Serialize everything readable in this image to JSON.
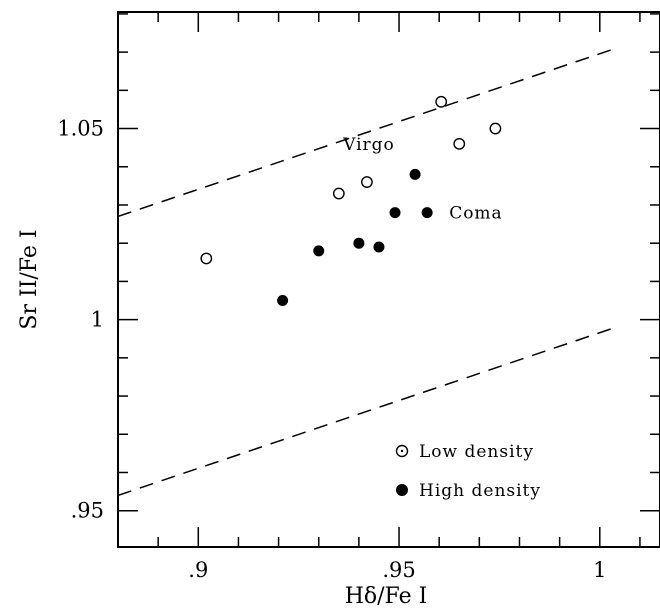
{
  "chart_data": {
    "type": "scatter",
    "xlabel": "Hδ/Fe I",
    "ylabel": "Sr II/Fe I",
    "xlim": [
      0.88,
      1.015
    ],
    "ylim": [
      0.9405,
      1.0805
    ],
    "x_ticks": [
      {
        "value": 0.9,
        "label": ".9"
      },
      {
        "value": 0.95,
        "label": ".95"
      },
      {
        "value": 1.0,
        "label": "1"
      }
    ],
    "y_ticks": [
      {
        "value": 0.95,
        "label": ".95"
      },
      {
        "value": 1.0,
        "label": "1"
      },
      {
        "value": 1.05,
        "label": "1.05"
      }
    ],
    "series": [
      {
        "name": "Low density",
        "marker": "open-circle-dot",
        "points": [
          {
            "x": 0.902,
            "y": 1.016
          },
          {
            "x": 0.935,
            "y": 1.033
          },
          {
            "x": 0.942,
            "y": 1.036
          },
          {
            "x": 0.9605,
            "y": 1.057
          },
          {
            "x": 0.965,
            "y": 1.046
          },
          {
            "x": 0.974,
            "y": 1.05
          }
        ]
      },
      {
        "name": "High density",
        "marker": "filled-circle",
        "points": [
          {
            "x": 0.921,
            "y": 1.005
          },
          {
            "x": 0.93,
            "y": 1.018
          },
          {
            "x": 0.94,
            "y": 1.02
          },
          {
            "x": 0.945,
            "y": 1.019
          },
          {
            "x": 0.949,
            "y": 1.028
          },
          {
            "x": 0.954,
            "y": 1.038
          },
          {
            "x": 0.957,
            "y": 1.028
          }
        ]
      }
    ],
    "reference_lines": [
      {
        "style": "dashed",
        "x1": 0.88,
        "y1": 1.027,
        "x2": 1.004,
        "y2": 1.071
      },
      {
        "style": "dashed",
        "x1": 0.88,
        "y1": 0.954,
        "x2": 1.004,
        "y2": 0.998
      }
    ],
    "annotations": [
      {
        "text": "Virgo",
        "x": 0.945,
        "y": 1.046
      },
      {
        "text": "Coma",
        "x": 0.9605,
        "y": 1.028
      }
    ],
    "legend": {
      "position": "bottom-right",
      "entries": [
        "Low density",
        "High density"
      ]
    },
    "grid": false
  }
}
